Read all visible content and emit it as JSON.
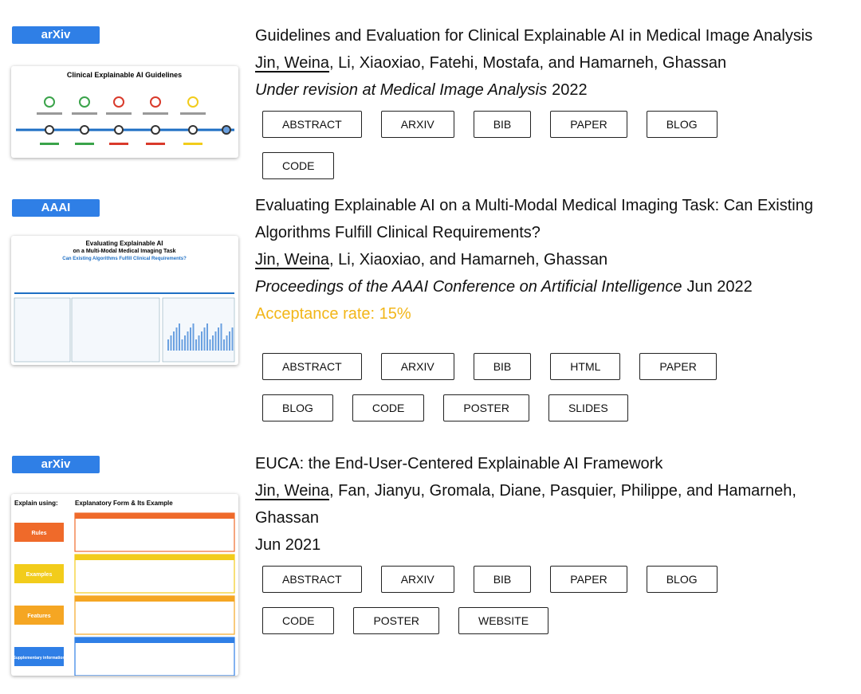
{
  "publications": [
    {
      "badge": "arXiv",
      "thumbnail": {
        "title": "Clinical Explainable AI Guidelines"
      },
      "title": "Guidelines and Evaluation for Clinical Explainable AI in Medical Image Analysis",
      "self": "Jin, Weina",
      "others": ", Li, Xiaoxiao, Fatehi, Mostafa, and Hamarneh, Ghassan",
      "venue": "Under revision at Medical Image Analysis",
      "date": "2022",
      "buttons": [
        "ABSTRACT",
        "ARXIV",
        "BIB",
        "PAPER",
        "BLOG",
        "CODE"
      ]
    },
    {
      "badge": "AAAI",
      "thumbnail": {
        "title": "Evaluating Explainable AI",
        "subtitle": "on a Multi-Modal Medical Imaging Task",
        "tagline": "Can Existing Algorithms Fulfill Clinical Requirements?"
      },
      "title": "Evaluating Explainable AI on a Multi-Modal Medical Imaging Task: Can Existing Algorithms Fulfill Clinical Requirements?",
      "self": "Jin, Weina",
      "others": ", Li, Xiaoxiao, and Hamarneh, Ghassan",
      "venue": "Proceedings of the AAAI Conference on Artificial Intelligence",
      "date": "Jun 2022",
      "note": "Acceptance rate: 15%",
      "buttons": [
        "ABSTRACT",
        "ARXIV",
        "BIB",
        "HTML",
        "PAPER",
        "BLOG",
        "CODE",
        "POSTER",
        "SLIDES"
      ]
    },
    {
      "badge": "arXiv",
      "thumbnail": {
        "title": "Explain using:",
        "subtitle": "Explanatory Form & Its Example",
        "sections": [
          "Rules",
          "Examples",
          "Features",
          "Supplementary information"
        ]
      },
      "title": "EUCA: the End-User-Centered Explainable AI Framework",
      "self": "Jin, Weina",
      "others": ", Fan, Jianyu, Gromala, Diane, Pasquier, Philippe, and Hamarneh, Ghassan",
      "date": "Jun 2021",
      "buttons": [
        "ABSTRACT",
        "ARXIV",
        "BIB",
        "PAPER",
        "BLOG",
        "CODE",
        "POSTER",
        "WEBSITE"
      ]
    }
  ]
}
